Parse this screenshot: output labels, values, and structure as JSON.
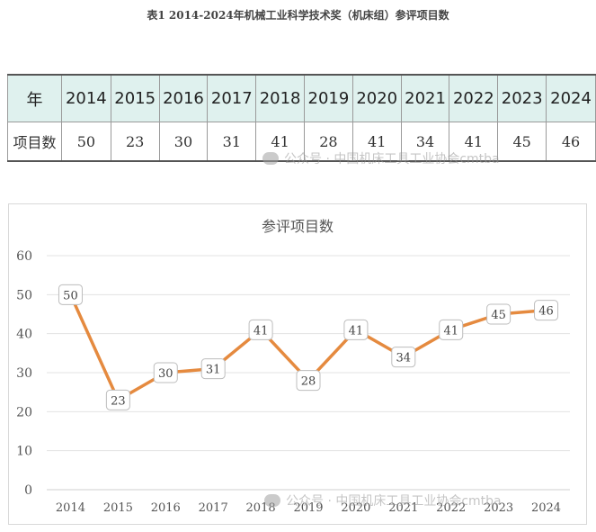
{
  "page_title": "表1 2014-2024年机械工业科学技术奖（机床组）参评项目数",
  "table": {
    "header_label": "年",
    "row_label": "项目数",
    "years": [
      "2014",
      "2015",
      "2016",
      "2017",
      "2018",
      "2019",
      "2020",
      "2021",
      "2022",
      "2023",
      "2024"
    ],
    "counts": [
      "50",
      "23",
      "30",
      "31",
      "41",
      "28",
      "41",
      "34",
      "41",
      "45",
      "46"
    ]
  },
  "watermark": {
    "text": "公众号 · 中国机床工具工业协会cmtba"
  },
  "chart_data": {
    "type": "line",
    "title": "参评项目数",
    "categories": [
      "2014",
      "2015",
      "2016",
      "2017",
      "2018",
      "2019",
      "2020",
      "2021",
      "2022",
      "2023",
      "2024"
    ],
    "values": [
      50,
      23,
      30,
      31,
      41,
      28,
      41,
      34,
      41,
      45,
      46
    ],
    "ylim": [
      0,
      60
    ],
    "yticks": [
      "0",
      "10",
      "20",
      "30",
      "40",
      "50",
      "60"
    ],
    "grid": true,
    "line_color": "#e58a3f",
    "grid_color": "#e3e3e3"
  }
}
